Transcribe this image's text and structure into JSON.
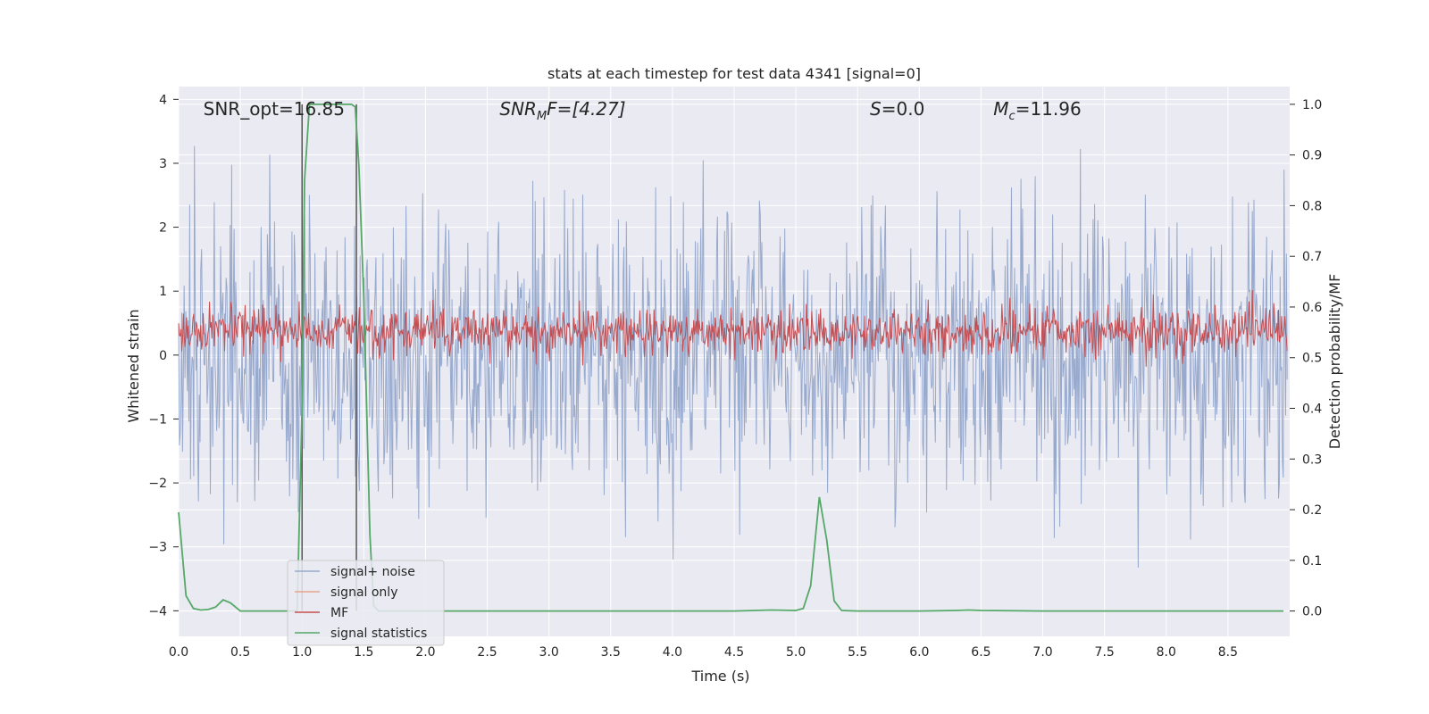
{
  "chart_data": {
    "type": "line",
    "title": "stats at each timestep for test data 4341 [signal=0]",
    "xlabel": "Time (s)",
    "ylabel": "Whitened strain",
    "y2label": "Detection probability/MF",
    "xlim": [
      0.0,
      9.0
    ],
    "ylim": [
      -4.4,
      4.2
    ],
    "y2lim": [
      -0.05,
      1.035
    ],
    "x_ticks": [
      "0.0",
      "0.5",
      "1.0",
      "1.5",
      "2.0",
      "2.5",
      "3.0",
      "3.5",
      "4.0",
      "4.5",
      "5.0",
      "5.5",
      "6.0",
      "6.5",
      "7.0",
      "7.5",
      "8.0",
      "8.5"
    ],
    "y_ticks": [
      "4",
      "3",
      "2",
      "1",
      "0",
      "−1",
      "−2",
      "−3",
      "−4"
    ],
    "y2_ticks": [
      "1.0",
      "0.9",
      "0.8",
      "0.7",
      "0.6",
      "0.5",
      "0.4",
      "0.3",
      "0.2",
      "0.1",
      "0.0"
    ],
    "grid": true,
    "legend_position": "lower-left",
    "annotations": [
      {
        "text": "SNR_opt=16.85",
        "x": 0.2,
        "y": 3.85
      },
      {
        "base": "SNR",
        "sub": "M",
        "rest": "F=[4.27]",
        "x": 2.6,
        "y": 3.85
      },
      {
        "base": "S",
        "sub": "",
        "rest": "=0.0",
        "x": 5.6,
        "y": 3.85
      },
      {
        "base": "M",
        "sub": "c",
        "rest": "=11.96",
        "x": 6.6,
        "y": 3.85
      }
    ],
    "vlines": [
      {
        "x": 1.0,
        "color": "#555555"
      },
      {
        "x": 1.44,
        "color": "#555555"
      }
    ],
    "series": [
      {
        "name": "signal+ noise",
        "axis": "left",
        "color": "#97a9cd",
        "kind": "noise",
        "amplitude": 1.0,
        "samples": 1400,
        "seed": 4341
      },
      {
        "name": "signal only",
        "axis": "left",
        "color": "#e8a489",
        "kind": "flat",
        "value": 0.0
      },
      {
        "name": "MF",
        "axis": "right",
        "color": "#c44e52",
        "kind": "noise-band",
        "center": 0.552,
        "spread": 0.022,
        "samples": 1400,
        "seed": 17
      },
      {
        "name": "signal statistics",
        "axis": "right",
        "color": "#55a868",
        "kind": "line",
        "x": [
          0.0,
          0.06,
          0.12,
          0.18,
          0.24,
          0.3,
          0.36,
          0.42,
          0.5,
          0.6,
          0.8,
          0.9,
          0.96,
          1.0,
          1.02,
          1.06,
          1.1,
          1.2,
          1.3,
          1.4,
          1.43,
          1.46,
          1.5,
          1.55,
          1.58,
          1.62,
          1.7,
          2.0,
          3.0,
          4.0,
          4.5,
          4.8,
          5.0,
          5.06,
          5.12,
          5.19,
          5.25,
          5.31,
          5.37,
          5.5,
          6.0,
          6.3,
          6.4,
          6.5,
          7.0,
          8.0,
          8.95
        ],
        "y": [
          0.195,
          0.03,
          0.005,
          0.002,
          0.003,
          0.008,
          0.022,
          0.016,
          0.0,
          0.0,
          0.0,
          0.0,
          0.0,
          0.4,
          0.85,
          1.0,
          1.0,
          1.0,
          1.0,
          1.0,
          0.995,
          0.88,
          0.62,
          0.15,
          0.01,
          0.0,
          0.0,
          0.0,
          0.0,
          0.0,
          0.0,
          0.002,
          0.001,
          0.005,
          0.05,
          0.225,
          0.14,
          0.02,
          0.001,
          0.0,
          0.0,
          0.001,
          0.002,
          0.001,
          0.0,
          0.0,
          0.0
        ]
      }
    ]
  }
}
